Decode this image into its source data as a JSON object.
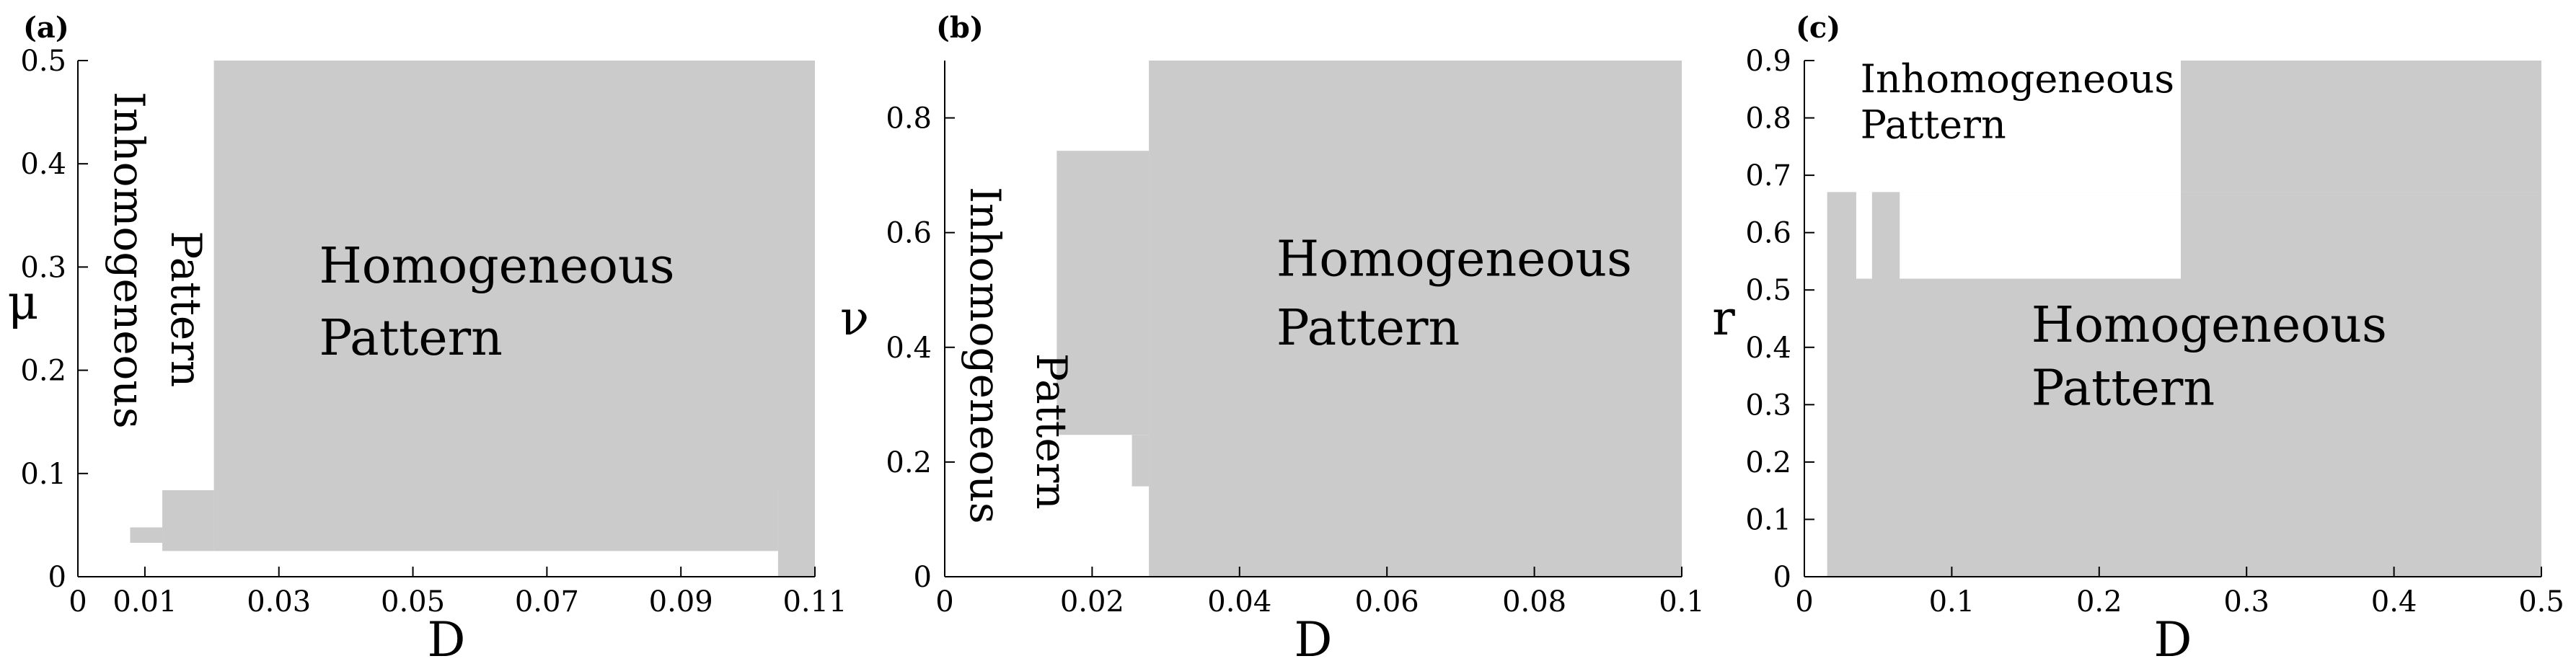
{
  "colors": {
    "region_fill": "#cbcbcb",
    "axis": "#000000",
    "background": "#ffffff"
  },
  "chart_data": [
    {
      "type": "area",
      "panel_label": "(a)",
      "xlabel": "D",
      "ylabel": "μ",
      "xlim": [
        0,
        0.11
      ],
      "ylim": [
        0,
        0.5
      ],
      "xticks": [
        0,
        0.01,
        0.03,
        0.05,
        0.07,
        0.09,
        0.11
      ],
      "xtick_labels": [
        "0",
        "0.01",
        "0.03",
        "0.05",
        "0.07",
        "0.09",
        "0.11"
      ],
      "yticks": [
        0,
        0.1,
        0.2,
        0.3,
        0.4,
        0.5
      ],
      "ytick_labels": [
        "0",
        "0.1",
        "0.2",
        "0.3",
        "0.4",
        "0.5"
      ],
      "grid": false,
      "regions": [
        {
          "name": "Homogeneous Pattern",
          "rects": [
            [
              0.0203,
              0.0838,
              0.11,
              0.5
            ],
            [
              0.0126,
              0.0249,
              0.0203,
              0.0838
            ],
            [
              0.0203,
              0.0249,
              0.1045,
              0.0838
            ],
            [
              0.0078,
              0.0328,
              0.0126,
              0.0478
            ],
            [
              0.1045,
              0,
              0.11,
              0.0838
            ]
          ]
        }
      ],
      "annotations": [
        {
          "text": "Homogeneous",
          "x": 0.036,
          "y": 0.285
        },
        {
          "text": "Pattern",
          "x": 0.036,
          "y": 0.215
        },
        {
          "text": "Inhomogeneous",
          "x": 0.0055,
          "y": 0.47,
          "rotation": -90
        },
        {
          "text": "Pattern",
          "x": 0.014,
          "y": 0.335,
          "rotation": -90
        }
      ]
    },
    {
      "type": "area",
      "panel_label": "(b)",
      "xlabel": "D",
      "ylabel": "ν",
      "xlim": [
        0,
        0.1
      ],
      "ylim": [
        0,
        0.9
      ],
      "xticks": [
        0,
        0.02,
        0.04,
        0.06,
        0.08,
        0.1
      ],
      "xtick_labels": [
        "0",
        "0.02",
        "0.04",
        "0.06",
        "0.08",
        "0.1"
      ],
      "yticks": [
        0,
        0.2,
        0.4,
        0.6,
        0.8
      ],
      "ytick_labels": [
        "0",
        "0.2",
        "0.4",
        "0.6",
        "0.8"
      ],
      "grid": false,
      "regions": [
        {
          "name": "Homogeneous Pattern",
          "rects": [
            [
              0.0277,
              0,
              0.1,
              0.9
            ],
            [
              0.0152,
              0.2473,
              0.0277,
              0.7426
            ],
            [
              0.0254,
              0.1576,
              0.0277,
              0.2473
            ],
            [
              0.0344,
              0,
              0.1,
              0.1576
            ]
          ]
        }
      ],
      "annotations": [
        {
          "text": "Homogeneous",
          "x": 0.045,
          "y": 0.525
        },
        {
          "text": "Pattern",
          "x": 0.045,
          "y": 0.405
        },
        {
          "text": "Inhomogeneous",
          "x": 0.0035,
          "y": 0.68,
          "rotation": -90
        },
        {
          "text": "Pattern",
          "x": 0.0125,
          "y": 0.39,
          "rotation": -90
        }
      ]
    },
    {
      "type": "area",
      "panel_label": "(c)",
      "xlabel": "D",
      "ylabel": "r",
      "xlim": [
        0,
        0.5
      ],
      "ylim": [
        0,
        0.9
      ],
      "xticks": [
        0,
        0.1,
        0.2,
        0.3,
        0.4,
        0.5
      ],
      "xtick_labels": [
        "0",
        "0.1",
        "0.2",
        "0.3",
        "0.4",
        "0.5"
      ],
      "yticks": [
        0,
        0.1,
        0.2,
        0.3,
        0.4,
        0.5,
        0.6,
        0.7,
        0.8,
        0.9
      ],
      "ytick_labels": [
        "0",
        "0.1",
        "0.2",
        "0.3",
        "0.4",
        "0.5",
        "0.6",
        "0.7",
        "0.8",
        "0.9"
      ],
      "grid": false,
      "regions": [
        {
          "name": "Homogeneous Pattern",
          "rects": [
            [
              0.0155,
              0,
              0.5,
              0.5197
            ],
            [
              0.0155,
              0.5197,
              0.5,
              0.6707
            ],
            [
              0.2554,
              0.6707,
              0.5,
              0.9
            ]
          ]
        },
        {
          "name": "Inhomogeneous Pattern",
          "rects": [
            [
              0.0352,
              0.5197,
              0.0459,
              0.6707
            ],
            [
              0.0647,
              0.5197,
              0.2554,
              0.6707
            ]
          ]
        }
      ],
      "annotations": [
        {
          "text": "Inhomogeneous",
          "x": 0.038,
          "y": 0.845
        },
        {
          "text": "Pattern",
          "x": 0.038,
          "y": 0.765
        },
        {
          "text": "Homogeneous",
          "x": 0.154,
          "y": 0.41
        },
        {
          "text": "Pattern",
          "x": 0.154,
          "y": 0.3
        }
      ]
    }
  ]
}
